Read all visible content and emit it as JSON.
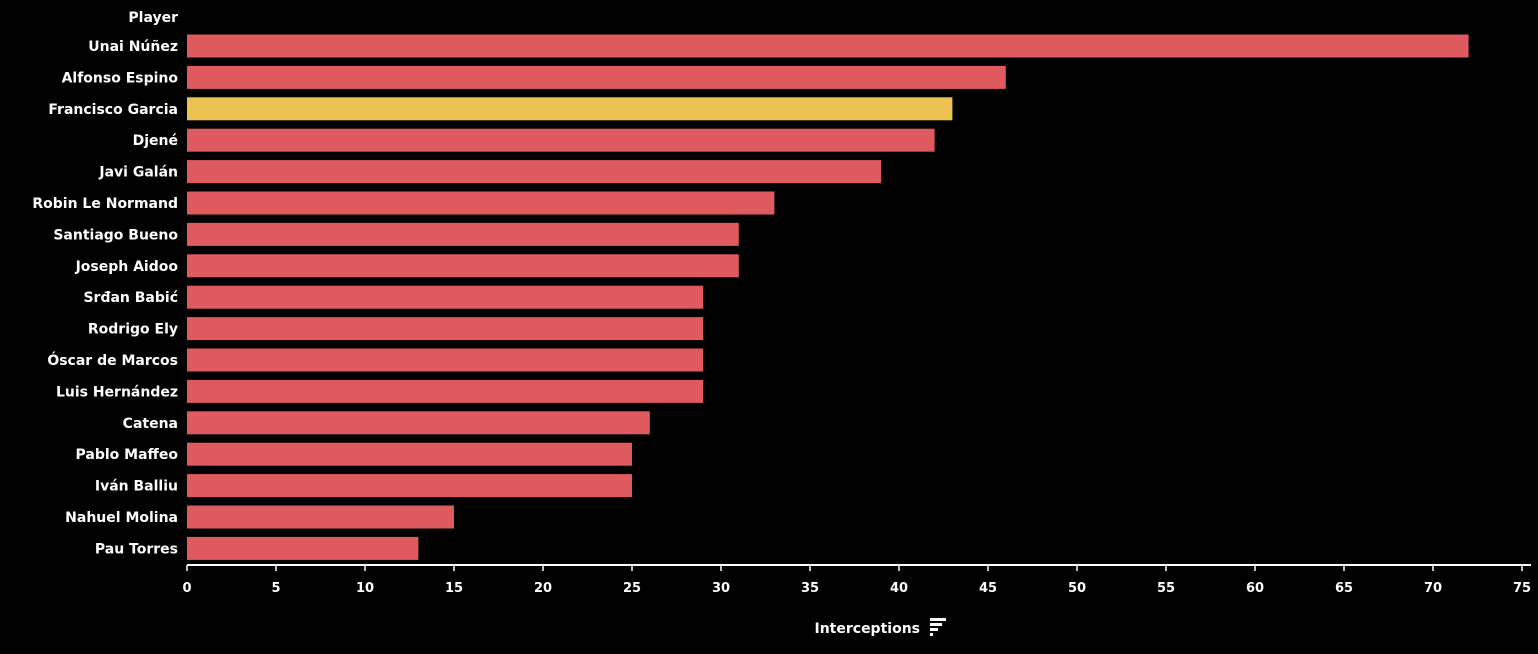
{
  "chart_data": {
    "type": "bar",
    "orientation": "horizontal",
    "row_header": "Player",
    "xlabel": "Interceptions",
    "xlim": [
      0,
      75
    ],
    "xticks": [
      0,
      5,
      10,
      15,
      20,
      25,
      30,
      35,
      40,
      45,
      50,
      55,
      60,
      65,
      70,
      75
    ],
    "grid": false,
    "default_color": "#de5a5e",
    "highlight_color": "#ecc350",
    "sort_icon": "sort-descending-icon",
    "categories": [
      "Unai Núñez",
      "Alfonso Espino",
      "Francisco Garcia",
      "Djené",
      "Javi Galán",
      "Robin Le Normand",
      "Santiago Bueno",
      "Joseph Aidoo",
      "Srđan Babić",
      "Rodrigo Ely",
      "Óscar de Marcos",
      "Luis Hernández",
      "Catena",
      "Pablo Maffeo",
      "Iván Balliu",
      "Nahuel Molina",
      "Pau Torres"
    ],
    "values": [
      72,
      46,
      43,
      42,
      39,
      33,
      31,
      31,
      29,
      29,
      29,
      29,
      26,
      25,
      25,
      15,
      13
    ],
    "highlighted": [
      "Francisco Garcia"
    ]
  }
}
